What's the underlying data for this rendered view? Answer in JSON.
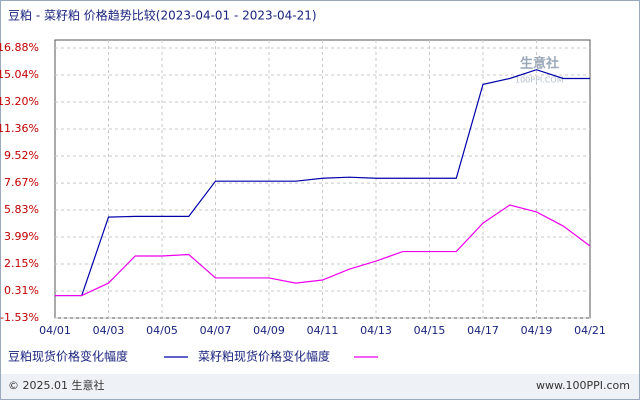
{
  "chart_data": {
    "type": "line",
    "title": "豆粕 - 菜籽粕 价格趋势比较(2023-04-01 - 2023-04-21)",
    "watermark": "生意社",
    "watermark_sub": "100PPI.COM",
    "footer_left": "© 2025.01 生意社",
    "footer_right": "www.100PPI.com",
    "categories": [
      "04/01",
      null,
      "04/03",
      null,
      "04/05",
      null,
      "04/07",
      null,
      "04/09",
      null,
      "04/11",
      null,
      "04/13",
      null,
      "04/15",
      null,
      "04/17",
      null,
      "04/19",
      null,
      "04/21"
    ],
    "series": [
      {
        "name": "豆粕现货价格变化幅度",
        "color": "#0000aa",
        "values": [
          0,
          0,
          5.35,
          5.4,
          5.4,
          5.4,
          7.8,
          7.8,
          7.8,
          7.8,
          8.0,
          8.07,
          8.0,
          8.0,
          8.0,
          8.0,
          14.4,
          14.8,
          15.4,
          14.8,
          14.8
        ]
      },
      {
        "name": "菜籽粕现货价格变化幅度",
        "color": "#ee00ee",
        "values": [
          0,
          0,
          0.85,
          2.7,
          2.7,
          2.8,
          1.2,
          1.2,
          1.2,
          0.85,
          1.06,
          1.8,
          2.35,
          3.0,
          3.0,
          3.0,
          4.94,
          6.17,
          5.7,
          4.74,
          3.38
        ]
      }
    ],
    "ylim": [
      -1.53,
      16.88
    ],
    "yticks": [
      {
        "value": 16.88,
        "label": "16.88%"
      },
      {
        "value": 15.04,
        "label": "15.04%"
      },
      {
        "value": 13.2,
        "label": "13.20%"
      },
      {
        "value": 11.36,
        "label": "11.36%"
      },
      {
        "value": 9.52,
        "label": "9.52%"
      },
      {
        "value": 7.67,
        "label": "7.67%"
      },
      {
        "value": 5.83,
        "label": "5.83%"
      },
      {
        "value": 3.99,
        "label": "3.99%"
      },
      {
        "value": 2.15,
        "label": "2.15%"
      },
      {
        "value": 0.31,
        "label": "0.31%"
      },
      {
        "value": -1.53,
        "label": "-1.53%"
      }
    ],
    "grid": true
  }
}
